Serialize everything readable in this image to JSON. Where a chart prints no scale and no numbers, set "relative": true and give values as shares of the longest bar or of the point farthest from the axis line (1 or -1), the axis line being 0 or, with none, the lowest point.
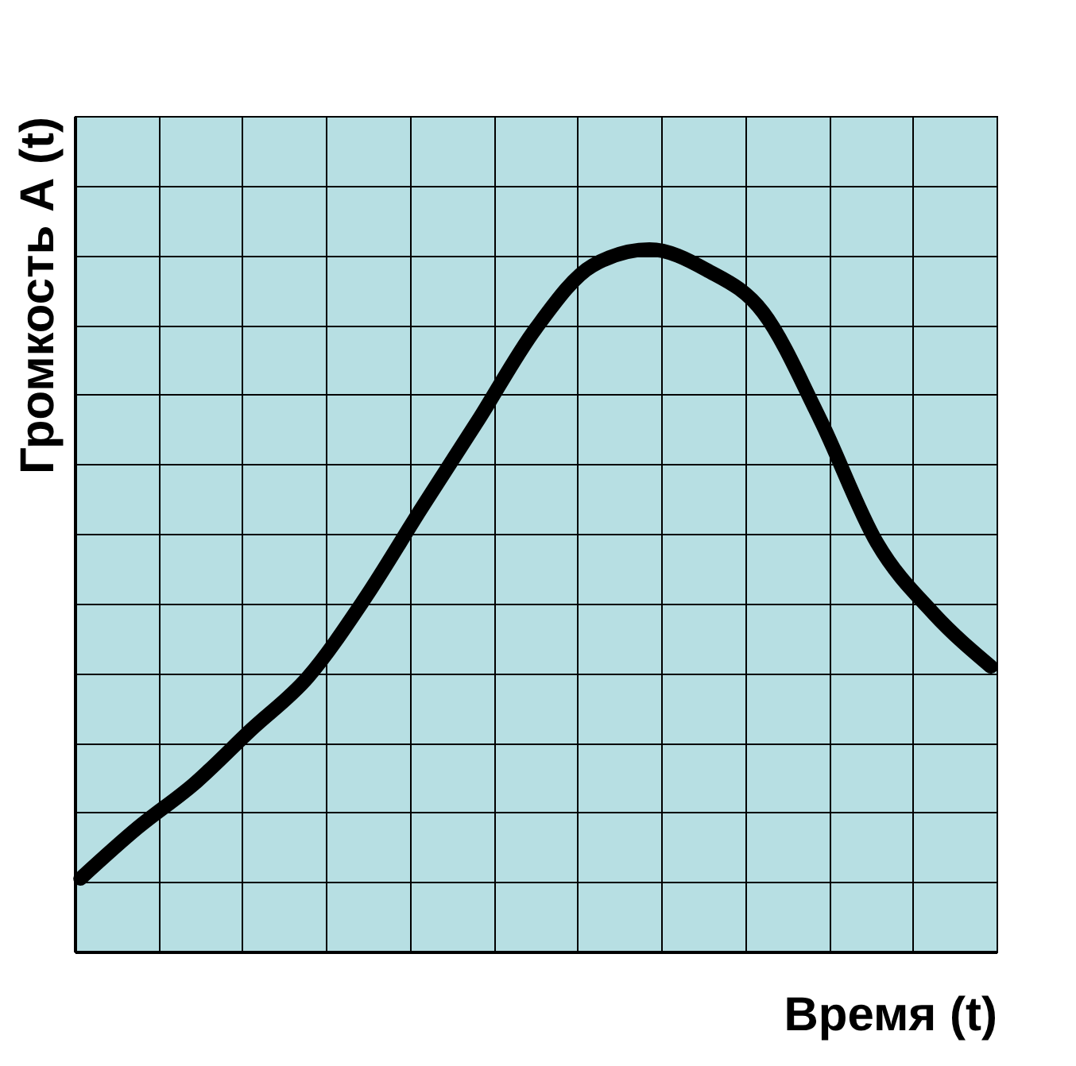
{
  "chart_data": {
    "type": "line",
    "relative": true,
    "xlabel": "Время (t)",
    "ylabel": "Громкость А (t)",
    "categories": [
      null,
      null,
      null,
      null,
      null,
      null,
      null,
      null,
      null,
      null,
      null,
      null,
      null,
      null,
      null,
      null,
      null
    ],
    "series": [
      {
        "color": "#000000",
        "values": [
          0.104,
          0.176,
          0.239,
          0.316,
          0.391,
          0.503,
          0.632,
          0.758,
          0.887,
          0.977,
          1.0,
          0.971,
          0.91,
          0.758,
          0.582,
          0.481,
          0.406
        ]
      }
    ],
    "grid": true,
    "marker": "none",
    "line_style": "solid"
  }
}
